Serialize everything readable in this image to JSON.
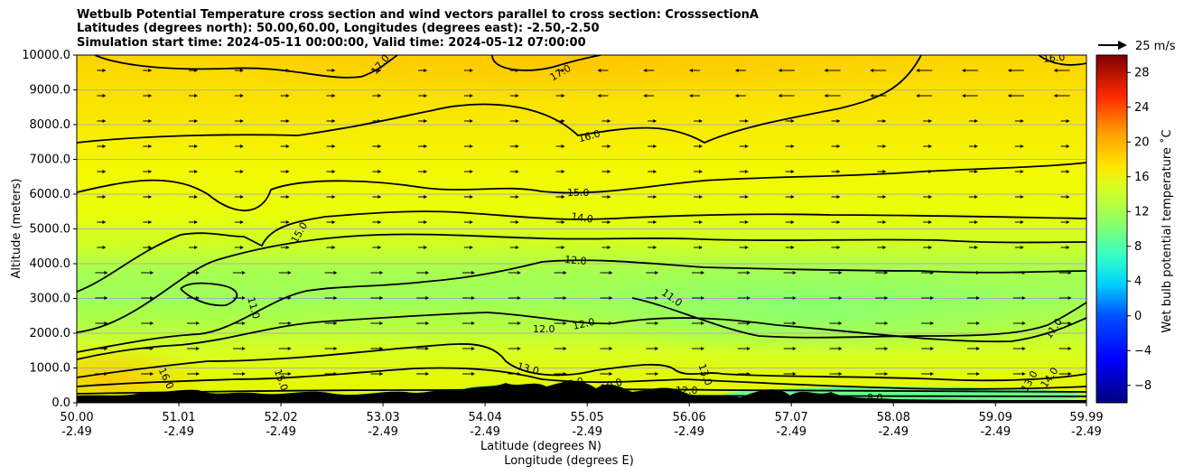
{
  "chart_data": {
    "type": "heatmap",
    "title_lines": [
      "Wetbulb Potential Temperature cross section and wind vectors parallel to cross section: CrosssectionA",
      "Latitudes (degrees north): 50.00,60.00, Longitudes (degrees east): -2.50,-2.50",
      "Simulation start time: 2024-05-11 00:00:00, Valid time: 2024-05-12 07:00:00"
    ],
    "xlabel_line1": "Latitude (degrees N)",
    "xlabel_line2": "Longitude (degrees E)",
    "ylabel": "Altitude (meters)",
    "x_ticks": [
      {
        "lat": "50.00",
        "lon": "-2.49"
      },
      {
        "lat": "51.01",
        "lon": "-2.49"
      },
      {
        "lat": "52.02",
        "lon": "-2.49"
      },
      {
        "lat": "53.03",
        "lon": "-2.49"
      },
      {
        "lat": "54.04",
        "lon": "-2.49"
      },
      {
        "lat": "55.05",
        "lon": "-2.49"
      },
      {
        "lat": "56.06",
        "lon": "-2.49"
      },
      {
        "lat": "57.07",
        "lon": "-2.49"
      },
      {
        "lat": "58.08",
        "lon": "-2.49"
      },
      {
        "lat": "59.09",
        "lon": "-2.49"
      },
      {
        "lat": "59.99",
        "lon": "-2.49"
      }
    ],
    "y_ticks": [
      "0.0",
      "1000.0",
      "2000.0",
      "3000.0",
      "4000.0",
      "5000.0",
      "6000.0",
      "7000.0",
      "8000.0",
      "9000.0",
      "10000.0"
    ],
    "ylim": [
      0,
      10000
    ],
    "xlim": [
      50.0,
      59.99
    ],
    "grid": "horizontal",
    "colorbar": {
      "label": "Wet bulb potential temperature ˚C",
      "range": [
        -10,
        30
      ],
      "ticks": [
        "−8",
        "−4",
        "0",
        "4",
        "8",
        "12",
        "16",
        "20",
        "24",
        "28"
      ],
      "colormap": "jet"
    },
    "vector_key": "25 m/s",
    "contour_labels": [
      "17.0",
      "17.0",
      "16.0",
      "16.0",
      "15.0",
      "15.0",
      "15.0",
      "14.0",
      "14.0",
      "13.0",
      "13.0",
      "13.0",
      "12.0",
      "12.0",
      "12.0",
      "12.0",
      "12.0",
      "11.0",
      "11.0",
      "11.0",
      "16.0",
      "10.0",
      "8.0"
    ]
  }
}
